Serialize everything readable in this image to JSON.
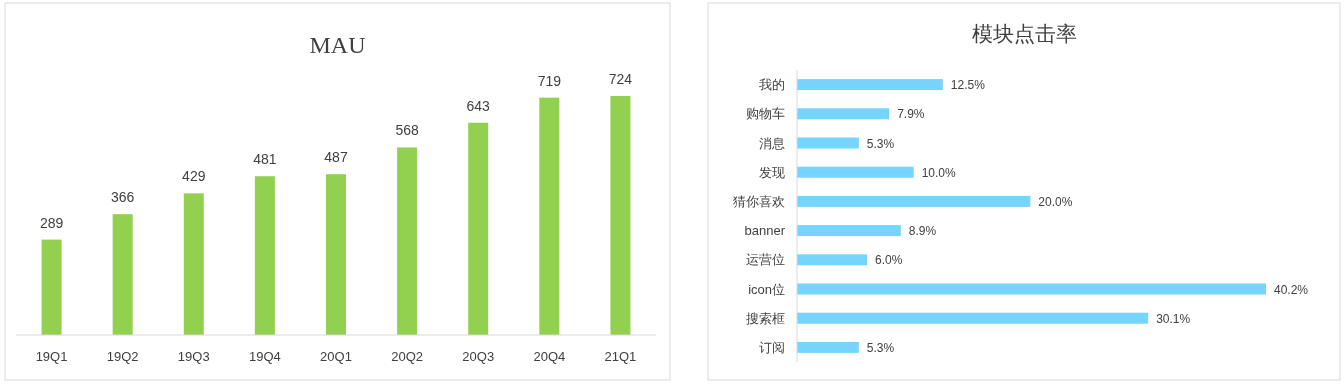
{
  "chart_data": [
    {
      "type": "bar",
      "title": "MAU",
      "categories": [
        "19Q1",
        "19Q2",
        "19Q3",
        "19Q4",
        "20Q1",
        "20Q2",
        "20Q3",
        "20Q4",
        "21Q1"
      ],
      "values": [
        289,
        366,
        429,
        481,
        487,
        568,
        643,
        719,
        724
      ],
      "color": "#92d050",
      "data_labels": true
    },
    {
      "type": "bar",
      "orientation": "horizontal",
      "title": "模块点击率",
      "categories": [
        "我的",
        "购物车",
        "消息",
        "发现",
        "猜你喜欢",
        "banner",
        "运营位",
        "icon位",
        "搜索框",
        "订阅"
      ],
      "values": [
        12.5,
        7.9,
        5.3,
        10.0,
        20.0,
        8.9,
        6.0,
        40.2,
        30.1,
        5.3
      ],
      "value_labels": [
        "12.5%",
        "7.9%",
        "5.3%",
        "10.0%",
        "20.0%",
        "8.9%",
        "6.0%",
        "40.2%",
        "30.1%",
        "5.3%"
      ],
      "color": "#75d5ff"
    }
  ]
}
